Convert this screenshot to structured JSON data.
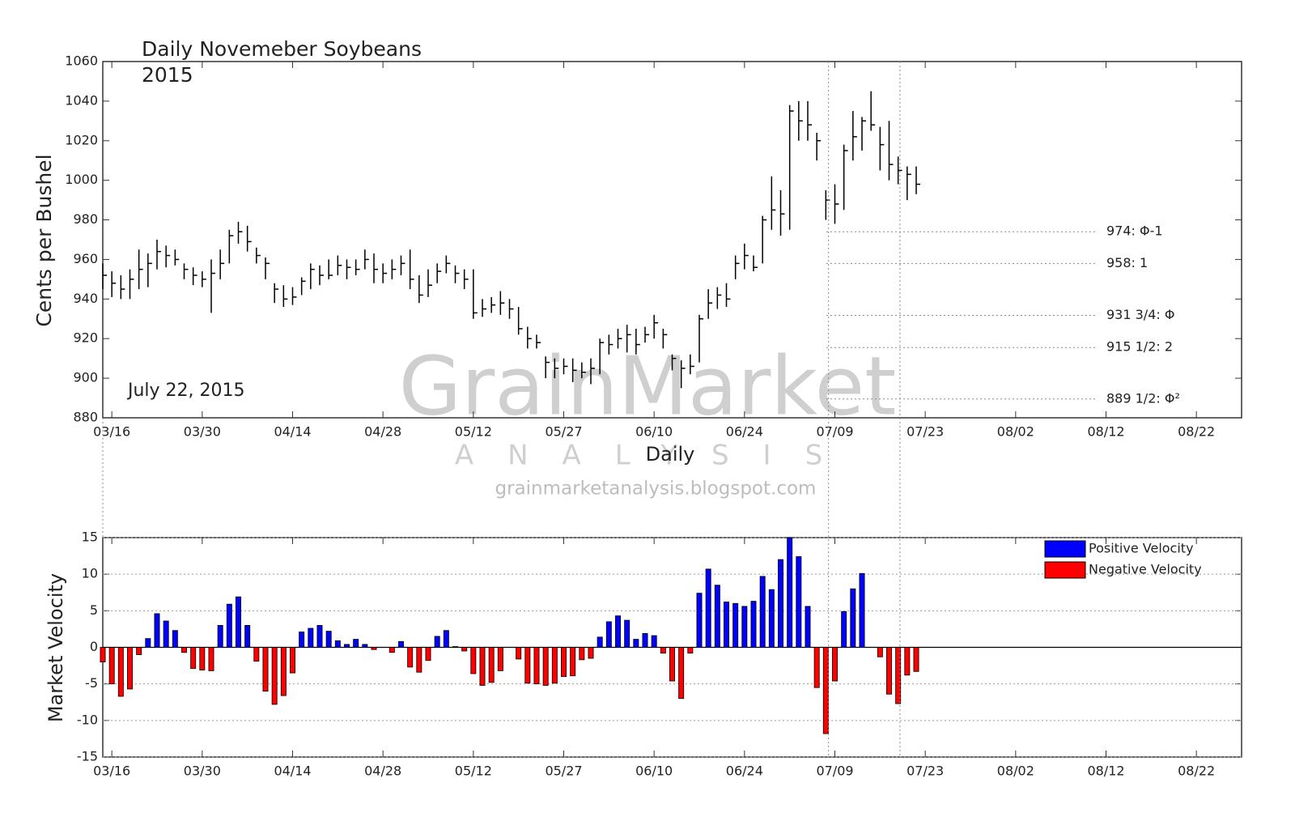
{
  "chart_data": [
    {
      "type": "ohlc",
      "title": "Daily Novemeber Soybeans",
      "subtitle": "2015",
      "annotation": "July 22, 2015",
      "x_label": "Daily",
      "y_label": "Cents per Bushel",
      "color": "#000000",
      "xlim": [
        -1,
        125
      ],
      "xticks": [
        {
          "value": 0,
          "label": "03/16"
        },
        {
          "value": 10,
          "label": "03/30"
        },
        {
          "value": 20,
          "label": "04/14"
        },
        {
          "value": 30,
          "label": "04/28"
        },
        {
          "value": 40,
          "label": "05/12"
        },
        {
          "value": 50,
          "label": "05/27"
        },
        {
          "value": 60,
          "label": "06/10"
        },
        {
          "value": 70,
          "label": "06/24"
        },
        {
          "value": 80,
          "label": "07/09"
        },
        {
          "value": 90,
          "label": "07/23"
        },
        {
          "value": 100,
          "label": "08/02"
        },
        {
          "value": 110,
          "label": "08/12"
        },
        {
          "value": 120,
          "label": "08/22"
        }
      ],
      "ylim": [
        880,
        1060
      ],
      "yticks": [
        880,
        900,
        920,
        940,
        960,
        980,
        1000,
        1020,
        1040,
        1060
      ],
      "x": [
        -1,
        0,
        1,
        2,
        3,
        4,
        5,
        6,
        7,
        8,
        9,
        10,
        11,
        12,
        13,
        14,
        15,
        16,
        17,
        18,
        19,
        20,
        21,
        22,
        23,
        24,
        25,
        26,
        27,
        28,
        29,
        30,
        31,
        32,
        33,
        34,
        35,
        36,
        37,
        38,
        39,
        40,
        41,
        42,
        43,
        44,
        45,
        46,
        47,
        48,
        49,
        50,
        51,
        52,
        53,
        54,
        55,
        56,
        57,
        58,
        59,
        60,
        61,
        62,
        63,
        64,
        65,
        66,
        67,
        68,
        69,
        70,
        71,
        72,
        73,
        74,
        75,
        76,
        77,
        78,
        79,
        80,
        81,
        82,
        83,
        84,
        85,
        86,
        87,
        88,
        89
      ],
      "high": [
        958,
        954,
        952,
        955,
        965,
        963,
        970,
        967,
        965,
        958,
        956,
        954,
        960,
        965,
        975,
        979,
        977,
        966,
        961,
        948,
        947,
        946,
        951,
        958,
        957,
        960,
        962,
        960,
        960,
        965,
        963,
        958,
        960,
        962,
        965,
        952,
        955,
        958,
        962,
        957,
        955,
        955,
        940,
        941,
        944,
        940,
        936,
        926,
        922,
        911,
        910,
        910,
        910,
        908,
        910,
        920,
        922,
        925,
        927,
        925,
        926,
        932,
        925,
        912,
        909,
        912,
        932,
        945,
        946,
        948,
        962,
        968,
        962,
        982,
        1002,
        995,
        1038,
        1040,
        1040,
        1024,
        995,
        998,
        1018,
        1035,
        1032,
        1045,
        1027,
        1030,
        1012,
        1007,
        1007
      ],
      "low": [
        945,
        941,
        940,
        940,
        945,
        946,
        955,
        956,
        957,
        950,
        947,
        946,
        933,
        950,
        958,
        968,
        964,
        958,
        950,
        938,
        936,
        937,
        942,
        945,
        947,
        950,
        952,
        950,
        952,
        955,
        948,
        948,
        950,
        952,
        945,
        938,
        941,
        948,
        953,
        948,
        945,
        930,
        931,
        933,
        932,
        930,
        922,
        915,
        915,
        900,
        900,
        902,
        898,
        900,
        897,
        902,
        912,
        915,
        913,
        912,
        918,
        920,
        915,
        904,
        895,
        902,
        908,
        930,
        935,
        936,
        950,
        955,
        954,
        958,
        975,
        972,
        975,
        1020,
        1020,
        1010,
        980,
        978,
        985,
        1010,
        1015,
        1025,
        1005,
        1000,
        998,
        990,
        993
      ],
      "close": [
        952,
        948,
        945,
        950,
        955,
        958,
        964,
        962,
        960,
        955,
        952,
        950,
        953,
        958,
        972,
        974,
        969,
        962,
        958,
        945,
        940,
        941,
        949,
        955,
        952,
        952,
        957,
        956,
        955,
        960,
        955,
        953,
        955,
        958,
        950,
        942,
        947,
        954,
        958,
        953,
        950,
        933,
        935,
        937,
        938,
        935,
        925,
        920,
        918,
        908,
        905,
        906,
        904,
        903,
        905,
        918,
        917,
        920,
        922,
        917,
        922,
        928,
        922,
        910,
        905,
        906,
        930,
        938,
        942,
        940,
        958,
        962,
        956,
        980,
        985,
        983,
        1035,
        1030,
        1028,
        1020,
        990,
        988,
        1015,
        1022,
        1030,
        1028,
        1018,
        1008,
        1005,
        1003,
        998
      ],
      "levels": [
        {
          "value": 974,
          "label": "974: Φ-1"
        },
        {
          "value": 958,
          "label": "958: 1"
        },
        {
          "value": 931.75,
          "label": "931 3/4: Φ"
        },
        {
          "value": 915.5,
          "label": "915 1/2: 2"
        },
        {
          "value": 889.5,
          "label": "889 1/2: Φ²"
        }
      ]
    },
    {
      "type": "bar",
      "y_label": "Market Velocity",
      "grid": true,
      "legend": "upper right",
      "xlim": [
        -1,
        125
      ],
      "xticks": [
        {
          "value": 0,
          "label": "03/16"
        },
        {
          "value": 10,
          "label": "03/30"
        },
        {
          "value": 20,
          "label": "04/14"
        },
        {
          "value": 30,
          "label": "04/28"
        },
        {
          "value": 40,
          "label": "05/12"
        },
        {
          "value": 50,
          "label": "05/27"
        },
        {
          "value": 60,
          "label": "06/10"
        },
        {
          "value": 70,
          "label": "06/24"
        },
        {
          "value": 80,
          "label": "07/09"
        },
        {
          "value": 90,
          "label": "07/23"
        },
        {
          "value": 100,
          "label": "08/02"
        },
        {
          "value": 110,
          "label": "08/12"
        },
        {
          "value": 120,
          "label": "08/22"
        }
      ],
      "ylim": [
        -15,
        15
      ],
      "yticks": [
        -15,
        -10,
        -5,
        0,
        5,
        10,
        15
      ],
      "x": [
        -1,
        0,
        1,
        2,
        3,
        4,
        5,
        6,
        7,
        8,
        9,
        10,
        11,
        12,
        13,
        14,
        15,
        16,
        17,
        18,
        19,
        20,
        21,
        22,
        23,
        24,
        25,
        26,
        27,
        28,
        29,
        30,
        31,
        32,
        33,
        34,
        35,
        36,
        37,
        38,
        39,
        40,
        41,
        42,
        43,
        44,
        45,
        46,
        47,
        48,
        49,
        50,
        51,
        52,
        53,
        54,
        55,
        56,
        57,
        58,
        59,
        60,
        61,
        62,
        63,
        64,
        65,
        66,
        67,
        68,
        69,
        70,
        71,
        72,
        73,
        74,
        75,
        76,
        77,
        78,
        79,
        80,
        81,
        82,
        83,
        84,
        85,
        86,
        87,
        88,
        89
      ],
      "series": [
        {
          "name": "Positive Velocity",
          "color": "#0000ff",
          "values": [
            null,
            null,
            null,
            null,
            null,
            1.2,
            4.6,
            3.6,
            2.3,
            null,
            null,
            null,
            null,
            3,
            5.9,
            6.9,
            3,
            null,
            null,
            null,
            null,
            null,
            2.1,
            2.6,
            3,
            2.2,
            0.9,
            0.4,
            1.1,
            0.4,
            null,
            null,
            null,
            0.8,
            null,
            null,
            null,
            1.5,
            2.3,
            0.1,
            null,
            null,
            null,
            null,
            null,
            null,
            null,
            null,
            null,
            null,
            null,
            null,
            null,
            null,
            null,
            1.4,
            3.5,
            4.3,
            3.7,
            1.1,
            1.9,
            1.6,
            null,
            null,
            null,
            null,
            7.4,
            10.7,
            8.5,
            6.2,
            6,
            5.6,
            6.3,
            9.7,
            7.9,
            12,
            15,
            12.4,
            5.6,
            null,
            null,
            null,
            4.9,
            8,
            10.1,
            null,
            null,
            null,
            null,
            null,
            null
          ]
        },
        {
          "name": "Negative Velocity",
          "color": "#ff0000",
          "values": [
            -2,
            -5,
            -6.7,
            -5.7,
            -1,
            null,
            null,
            null,
            null,
            -0.7,
            -2.9,
            -3.1,
            -3.2,
            null,
            null,
            null,
            null,
            -1.9,
            -6,
            -7.8,
            -6.6,
            -3.5,
            null,
            null,
            null,
            null,
            null,
            null,
            null,
            null,
            -0.3,
            null,
            -0.7,
            null,
            -2.7,
            -3.4,
            -1.8,
            null,
            null,
            null,
            -0.5,
            -3.6,
            -5.2,
            -4.8,
            -3.2,
            null,
            -1.6,
            -4.9,
            -5,
            -5.2,
            -4.9,
            -4,
            -3.9,
            -1.7,
            -1.5,
            null,
            null,
            null,
            null,
            null,
            null,
            null,
            -0.8,
            -4.6,
            -7,
            -0.8,
            null,
            null,
            null,
            null,
            null,
            null,
            null,
            null,
            null,
            null,
            null,
            null,
            null,
            -5.5,
            -11.8,
            -4.6,
            null,
            null,
            null,
            null,
            -1.3,
            -6.4,
            -7.7,
            -3.8,
            -3.3
          ]
        }
      ]
    }
  ],
  "watermark": {
    "title": "GrainMarket",
    "subtitle": "ANALYSIS",
    "url": "grainmarketanalysis.blogspot.com"
  }
}
